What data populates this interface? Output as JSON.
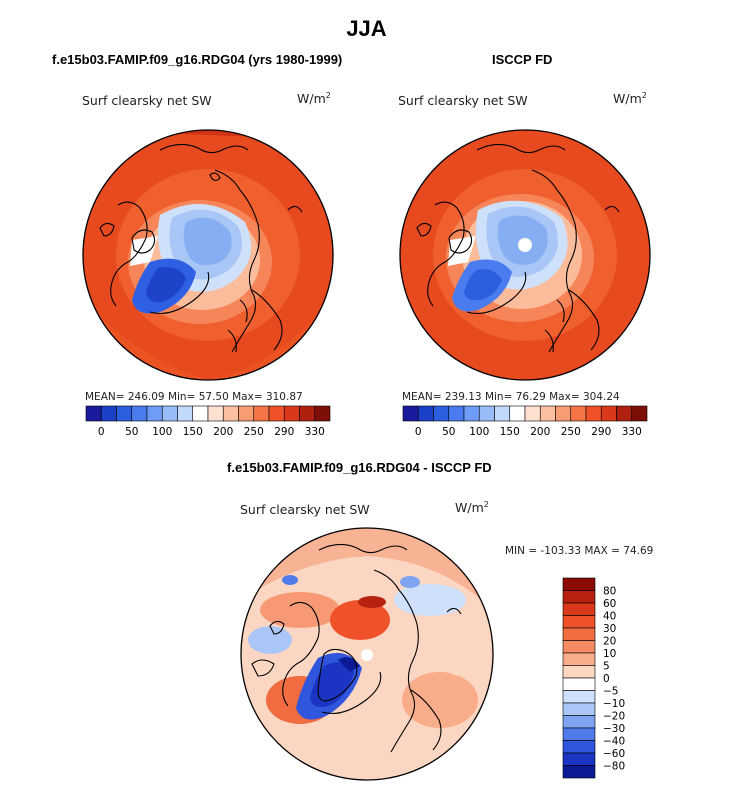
{
  "title": "JJA",
  "panels": [
    {
      "case": "f.e15b03.FAMIP.f09_g16.RDG04 (yrs 1980-1999)",
      "variable": "Surf clearsky net SW",
      "units": "W/m2",
      "stats": {
        "mean": "246.09",
        "min": "57.50",
        "max": "310.87"
      },
      "stats_text": "MEAN= 246.09  Min=  57.50  Max= 310.87"
    },
    {
      "case": "ISCCP FD",
      "variable": "Surf clearsky net SW",
      "units": "W/m2",
      "stats": {
        "mean": "239.13",
        "min": "76.29",
        "max": "304.24"
      },
      "stats_text": "MEAN= 239.13  Min=  76.29  Max= 304.24"
    },
    {
      "case": "f.e15b03.FAMIP.f09_g16.RDG04 - ISCCP FD",
      "variable": "Surf clearsky net SW",
      "units": "W/m2",
      "stats": {
        "min": "-103.33",
        "max": "74.69"
      },
      "stats_text": "MIN = -103.33 MAX =  74.69"
    }
  ],
  "colorbar_main": {
    "ticks": [
      "0",
      "50",
      "100",
      "150",
      "200",
      "250",
      "290",
      "330"
    ],
    "colors": [
      "#1a1a9c",
      "#1c3fc8",
      "#2a5fe0",
      "#4a7cf0",
      "#6f9cf6",
      "#97bcf8",
      "#c3d9fb",
      "#ffffff",
      "#fde0d0",
      "#fbc0a0",
      "#f89c74",
      "#f57548",
      "#ef5128",
      "#d9381a",
      "#b0200f",
      "#7e0f06"
    ]
  },
  "colorbar_diff": {
    "ticks": [
      "80",
      "60",
      "40",
      "30",
      "20",
      "10",
      "5",
      "0",
      "−5",
      "−10",
      "−20",
      "−30",
      "−40",
      "−60",
      "−80"
    ],
    "colors": [
      "#8a0c05",
      "#b7210f",
      "#d9381a",
      "#ef5128",
      "#f26c41",
      "#f68a62",
      "#f9ad8b",
      "#fcd7c2",
      "#ffffff",
      "#cfe0fb",
      "#a9c6f7",
      "#7ea4f2",
      "#4e7aea",
      "#2f56dc",
      "#1b34c4",
      "#0c1a96"
    ]
  },
  "chart_data": [
    {
      "type": "heatmap",
      "title": "Surf clearsky net SW",
      "subtitle": "f.e15b03.FAMIP.f09_g16.RDG04 (yrs 1980-1999)",
      "units": "W/m2",
      "mean": 246.09,
      "min": 57.5,
      "max": 310.87,
      "contour_levels": [
        0,
        25,
        50,
        75,
        100,
        125,
        150,
        175,
        200,
        225,
        250,
        270,
        290,
        310,
        330
      ]
    },
    {
      "type": "heatmap",
      "title": "Surf clearsky net SW",
      "subtitle": "ISCCP FD",
      "units": "W/m2",
      "mean": 239.13,
      "min": 76.29,
      "max": 304.24,
      "contour_levels": [
        0,
        25,
        50,
        75,
        100,
        125,
        150,
        175,
        200,
        225,
        250,
        270,
        290,
        310,
        330
      ]
    },
    {
      "type": "heatmap",
      "title": "Surf clearsky net SW",
      "subtitle": "f.e15b03.FAMIP.f09_g16.RDG04 - ISCCP FD",
      "units": "W/m2",
      "min": -103.33,
      "max": 74.69,
      "contour_levels": [
        -80,
        -60,
        -40,
        -30,
        -20,
        -10,
        -5,
        0,
        5,
        10,
        20,
        30,
        40,
        60,
        80
      ]
    }
  ]
}
